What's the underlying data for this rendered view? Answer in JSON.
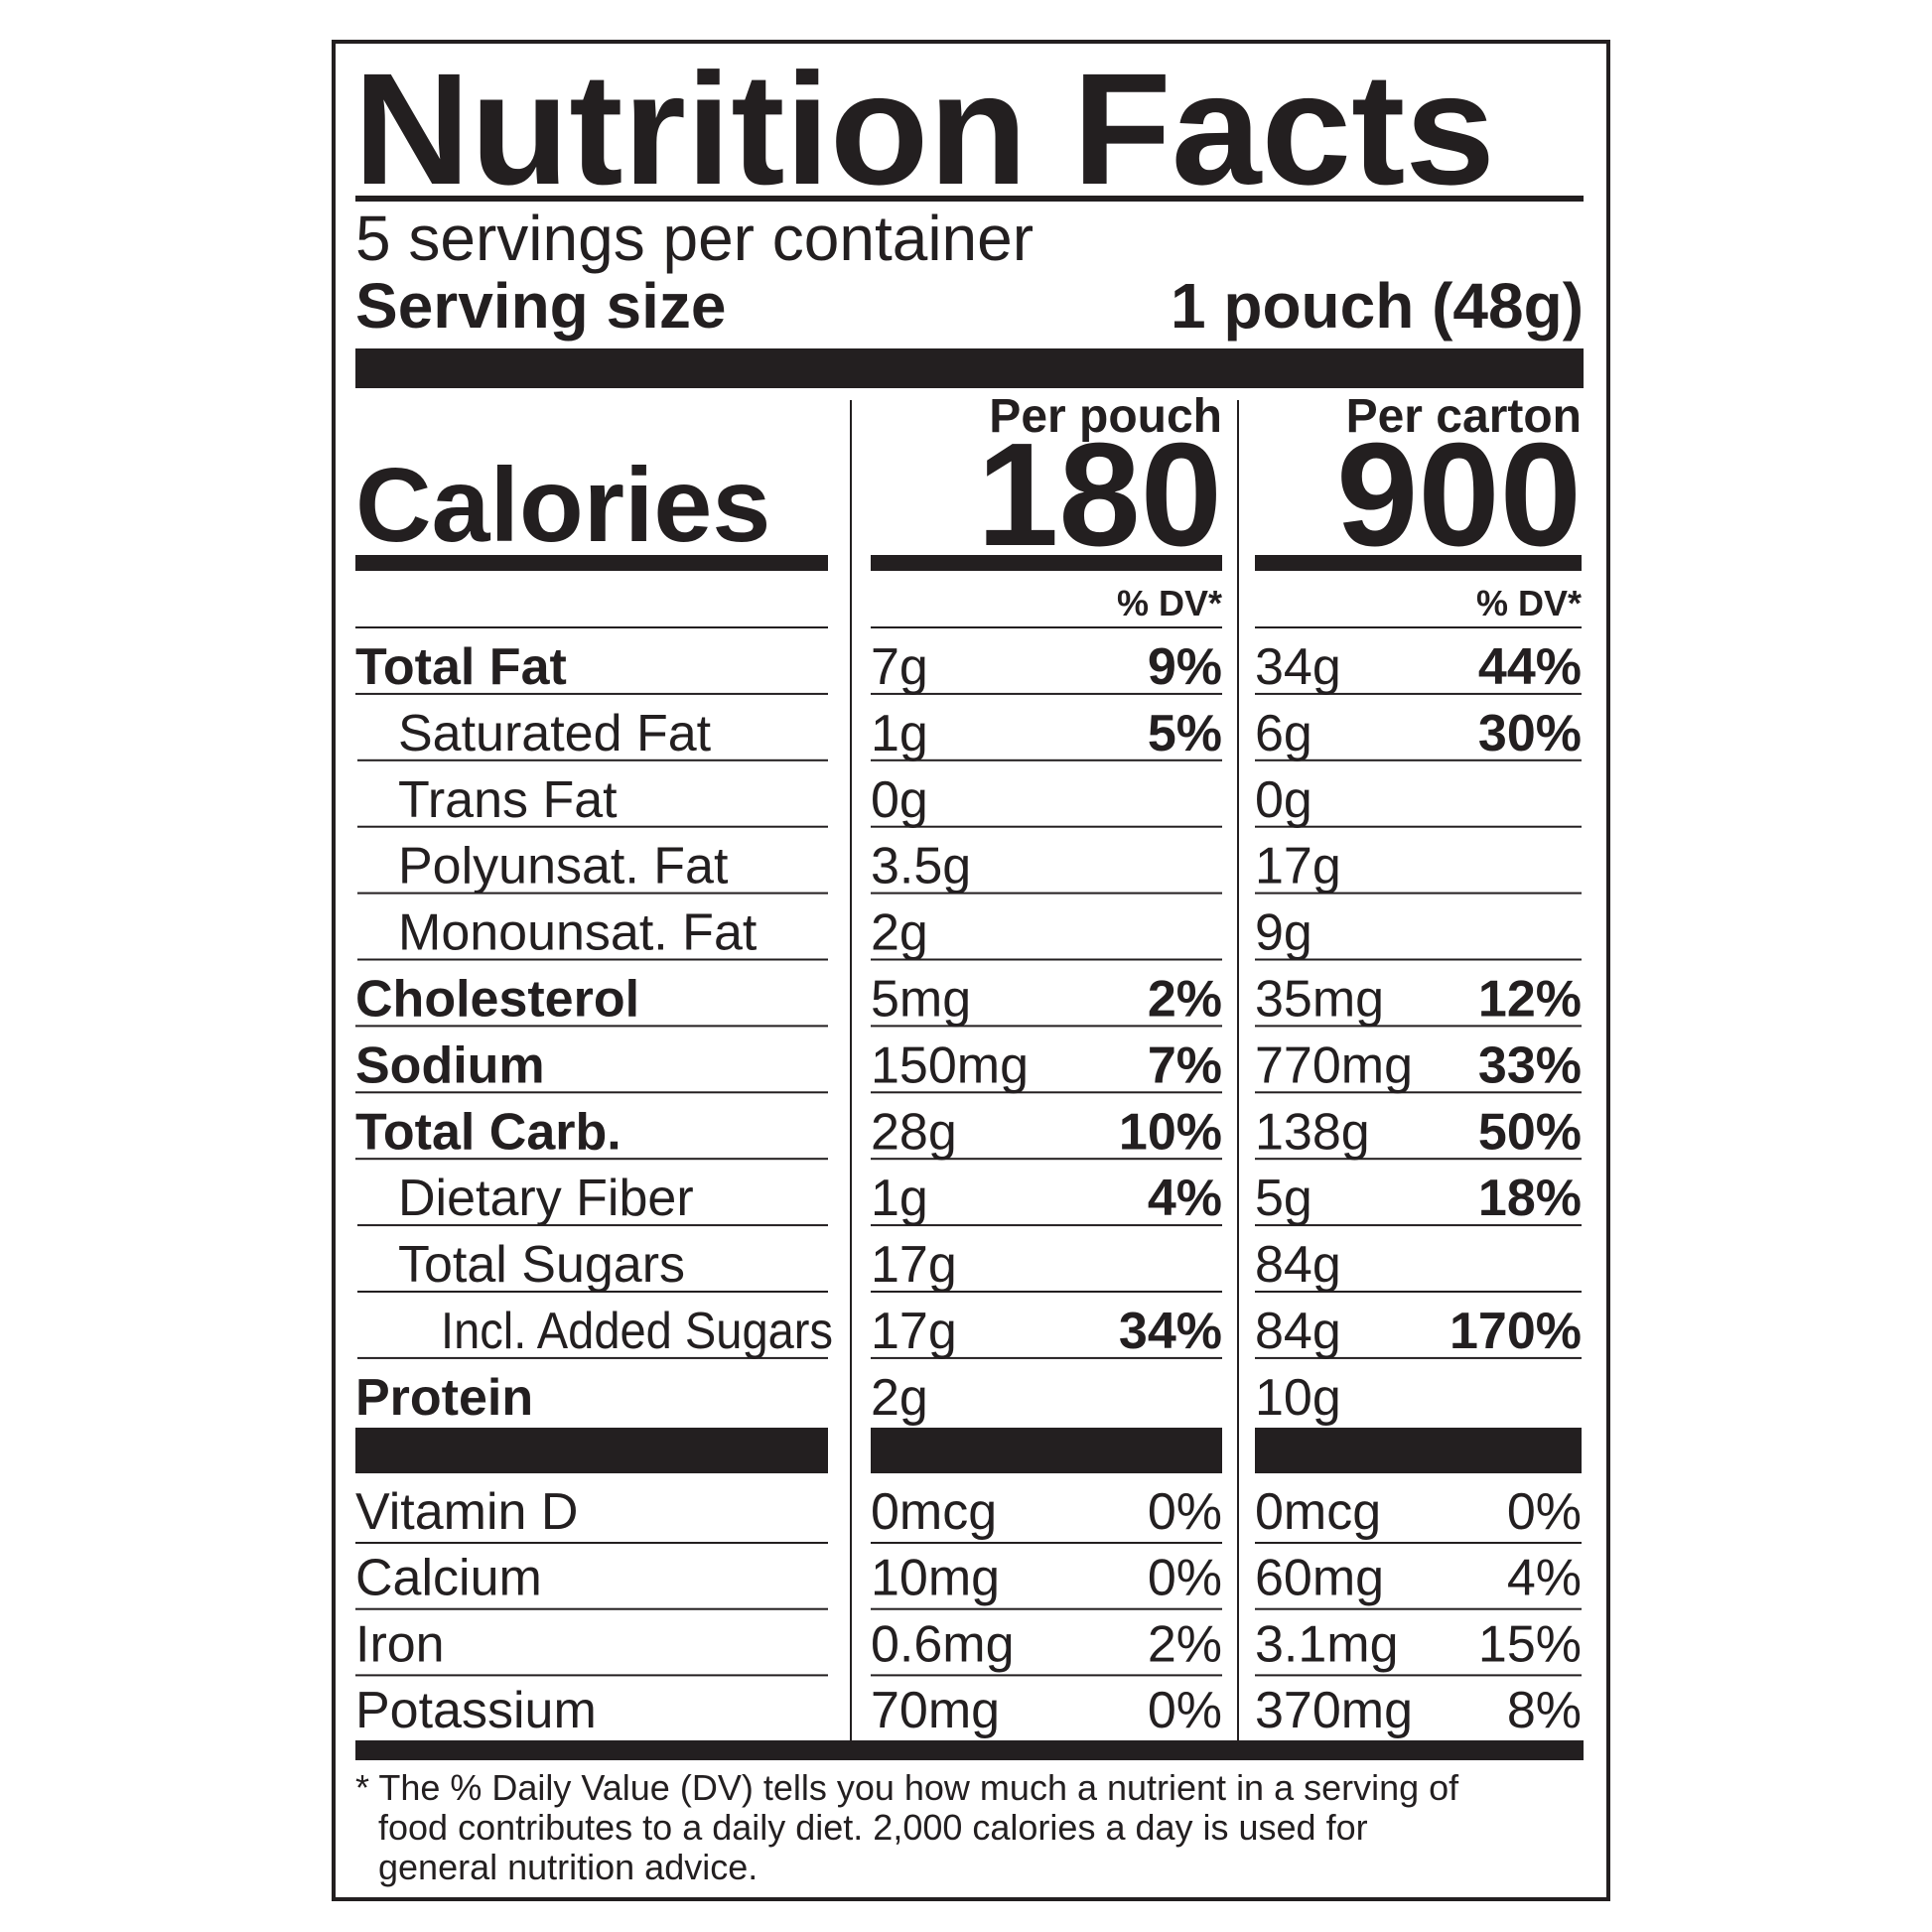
{
  "title": "Nutrition Facts",
  "servings": "5 servings per container",
  "serving_size": {
    "label": "Serving size",
    "value": "1 pouch (48g)"
  },
  "calories_label": "Calories",
  "columns": [
    {
      "header": "Per pouch",
      "calories": "180",
      "dv_header": "% DV*"
    },
    {
      "header": "Per carton",
      "calories": "900",
      "dv_header": "% DV*"
    }
  ],
  "nutrients": [
    {
      "name": "Total Fat",
      "values": [
        [
          "7g",
          "9%"
        ],
        [
          "34g",
          "44%"
        ]
      ]
    },
    {
      "name": "Saturated Fat",
      "values": [
        [
          "1g",
          "5%"
        ],
        [
          "6g",
          "30%"
        ]
      ]
    },
    {
      "name": "Trans Fat",
      "values": [
        [
          "0g"
        ],
        [
          "0g"
        ]
      ]
    },
    {
      "name": "Polyunsat. Fat",
      "values": [
        [
          "3.5g"
        ],
        [
          "17g"
        ]
      ]
    },
    {
      "name": "Monounsat. Fat",
      "values": [
        [
          "2g"
        ],
        [
          "9g"
        ]
      ]
    },
    {
      "name": "Cholesterol",
      "values": [
        [
          "5mg",
          "2%"
        ],
        [
          "35mg",
          "12%"
        ]
      ]
    },
    {
      "name": "Sodium",
      "values": [
        [
          "150mg",
          "7%"
        ],
        [
          "770mg",
          "33%"
        ]
      ]
    },
    {
      "name": "Total Carb.",
      "values": [
        [
          "28g",
          "10%"
        ],
        [
          "138g",
          "50%"
        ]
      ]
    },
    {
      "name": "Dietary Fiber",
      "values": [
        [
          "1g",
          "4%"
        ],
        [
          "5g",
          "18%"
        ]
      ]
    },
    {
      "name": "Total Sugars",
      "values": [
        [
          "17g"
        ],
        [
          "84g"
        ]
      ]
    },
    {
      "name": "Incl. Added Sugars",
      "values": [
        [
          "17g",
          "34%"
        ],
        [
          "84g",
          "170%"
        ]
      ]
    },
    {
      "name": "Protein",
      "values": [
        [
          "2g"
        ],
        [
          "10g"
        ]
      ]
    }
  ],
  "vitamins": [
    {
      "name": "Vitamin D",
      "values": [
        [
          "0mcg",
          "0%"
        ],
        [
          "0mcg",
          "0%"
        ]
      ]
    },
    {
      "name": "Calcium",
      "values": [
        [
          "10mg",
          "0%"
        ],
        [
          "60mg",
          "4%"
        ]
      ]
    },
    {
      "name": "Iron",
      "values": [
        [
          "0.6mg",
          "2%"
        ],
        [
          "3.1mg",
          "15%"
        ]
      ]
    },
    {
      "name": "Potassium",
      "values": [
        [
          "70mg",
          "0%"
        ],
        [
          "370mg",
          "8%"
        ]
      ]
    }
  ],
  "footnote": [
    "* The % Daily Value (DV) tells you how much a nutrient in a serving of",
    "food contributes to a daily diet. 2,000 calories a day is used for",
    "general nutrition advice."
  ]
}
